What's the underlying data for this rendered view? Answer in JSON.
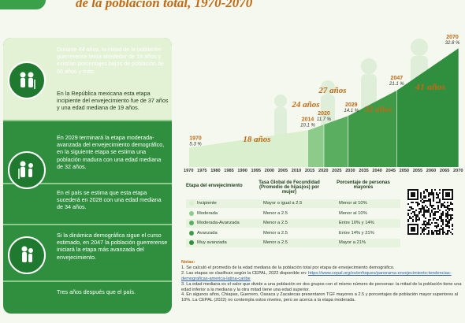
{
  "header": {
    "title": "de la población total, 1970-2070"
  },
  "panel": {
    "texts": [
      "Durante 44 años, la mitad de la población guerrerense tenía alrededor de 18 años y existían porcentajes bajos de población de 60 años y más.",
      "En la República mexicana esta etapa incipiente del envejecimiento fue de 37 años y una edad mediana de 19 años.",
      "En 2029 terminará la etapa moderada-avanzada del envejecimiento demográfico, en la siguiente etapa se estima una población madura con una edad mediana de 32 años.",
      "En el país se estima que esta etapa sucederá en 2028 con una edad mediana de 34 años.",
      "Si la dinámica demográfica sigue el curso estimado, en 2047 la población guerrerense iniciará la etapa más avanzada del envejecimiento.",
      "Tres años después que el país."
    ],
    "icons": [
      "elderly-couple-icon",
      "aging-people-icon",
      "elderly-person-icon"
    ]
  },
  "chart_data": {
    "type": "area",
    "x": [
      1970,
      1975,
      1980,
      1985,
      1990,
      1995,
      2000,
      2005,
      2010,
      2015,
      2020,
      2025,
      2030,
      2035,
      2040,
      2045,
      2050,
      2055,
      2060,
      2065,
      2070
    ],
    "x_tick_labels": [
      "1970",
      "1975",
      "1980",
      "1985",
      "1990",
      "1995",
      "2000",
      "2005",
      "2010",
      "2015",
      "2020",
      "2025",
      "2030",
      "2035",
      "2040",
      "2045",
      "2050",
      "2055",
      "2060",
      "2065",
      "2070"
    ],
    "milestones": [
      {
        "year": "1970",
        "pct": "5.3 %",
        "value": 5.3
      },
      {
        "year": "2014",
        "pct": "10.1 %",
        "value": 10.1
      },
      {
        "year": "2020",
        "pct": "11.7 %",
        "value": 11.7
      },
      {
        "year": "2029",
        "pct": "14.1 %",
        "value": 14.1
      },
      {
        "year": "2047",
        "pct": "21.1 %",
        "value": 21.1
      },
      {
        "year": "2070",
        "pct": "32.8 %",
        "value": 32.8
      }
    ],
    "stage_ages": [
      "18 años",
      "24 años",
      "27 años",
      "32 años",
      "41 años"
    ],
    "colors": {
      "incipiente": "#d9efcd",
      "moderada": "#8ccb8a",
      "moderada_avanzada": "#5aae60",
      "avanzada": "#3f9a48",
      "muy_avanzada": "#2f8f3e"
    }
  },
  "table": {
    "headers": [
      "Etapa del envejecimiento",
      "Tasa Global de Fecundidad (Promedio de hijas(os) por mujer)",
      "Porcentaje de personas mayores"
    ],
    "rows": [
      {
        "etapa": "Incipiente",
        "tgf": "Mayor o igual a 2.5",
        "pct": "Menor al 10%",
        "color": "#d9efcd"
      },
      {
        "etapa": "Moderada",
        "tgf": "Menor a 2.5",
        "pct": "Menor al 10%",
        "color": "#8ccb8a"
      },
      {
        "etapa": "Moderada-Avanzada",
        "tgf": "Menor a 2.5",
        "pct": "Entre 10% y 14%",
        "color": "#5aae60"
      },
      {
        "etapa": "Avanzada",
        "tgf": "Menor a 2.5",
        "pct": "Entre 14% y 21%",
        "color": "#3f9a48"
      },
      {
        "etapa": "Muy avanzada",
        "tgf": "Menor a 2.5",
        "pct": "Mayor a 21%",
        "color": "#2f8f3e"
      }
    ]
  },
  "notes": {
    "title": "Notas:",
    "n1": "1. Se calculó el promedio de la edad mediana de la población total por etapa de envejecimiento demográfico.",
    "n2": "2. Las etapas se clasifican según la CEPAL, 2022 disponible en:",
    "n2_link": "https://www.cepal.org/es/enfoques/panorama envejecimiento-tendencias-demograficas-america-latina-caribe",
    "n3": "3. La edad mediana es el valor que divide a una población en dos grupos con el mismo número de personas: la mitad de la población tiene una edad inferior a la mediana y la otra mitad tiene una edad superior.",
    "n4": "4. En algunos años, Chiapas, Guerrero, Oaxaca y Zacatecas presentaron TGF mayores a 2.5 y porcentajes de población mayor superiores al 10%. La CEPAL (2022) no contempla estos niveles, pero se acerca a la etapa moderada."
  }
}
